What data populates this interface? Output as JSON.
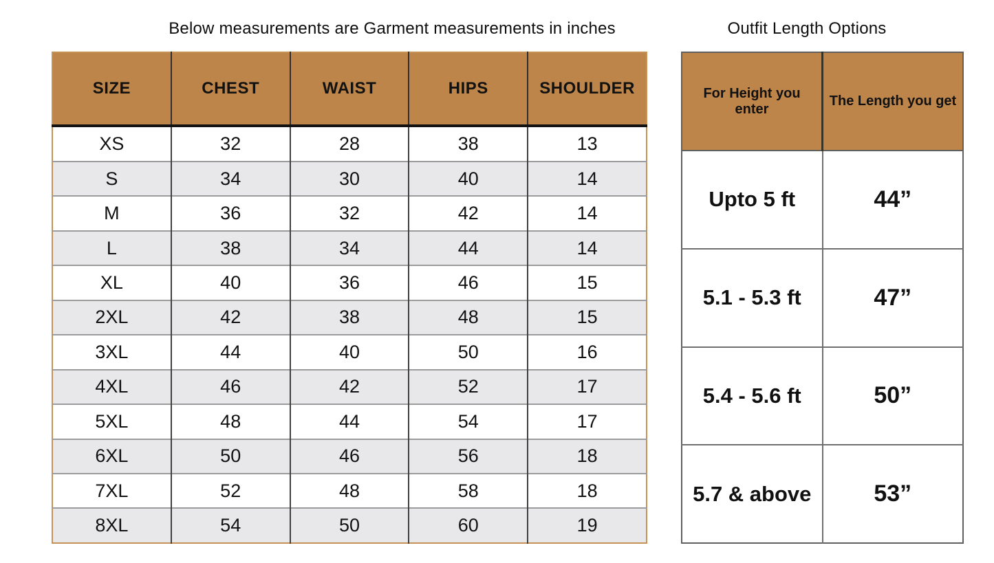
{
  "left_table": {
    "title": "Below measurements are Garment measurements in inches",
    "columns": [
      "SIZE",
      "CHEST",
      "WAIST",
      "HIPS",
      "SHOULDER"
    ],
    "rows": [
      [
        "XS",
        "32",
        "28",
        "38",
        "13"
      ],
      [
        "S",
        "34",
        "30",
        "40",
        "14"
      ],
      [
        "M",
        "36",
        "32",
        "42",
        "14"
      ],
      [
        "L",
        "38",
        "34",
        "44",
        "14"
      ],
      [
        "XL",
        "40",
        "36",
        "46",
        "15"
      ],
      [
        "2XL",
        "42",
        "38",
        "48",
        "15"
      ],
      [
        "3XL",
        "44",
        "40",
        "50",
        "16"
      ],
      [
        "4XL",
        "46",
        "42",
        "52",
        "17"
      ],
      [
        "5XL",
        "48",
        "44",
        "54",
        "17"
      ],
      [
        "6XL",
        "50",
        "46",
        "56",
        "18"
      ],
      [
        "7XL",
        "52",
        "48",
        "58",
        "18"
      ],
      [
        "8XL",
        "54",
        "50",
        "60",
        "19"
      ]
    ]
  },
  "right_table": {
    "title": "Outfit Length Options",
    "columns": [
      "For Height you enter",
      "The Length you get"
    ],
    "rows": [
      [
        "Upto 5 ft",
        "44”"
      ],
      [
        "5.1 - 5.3 ft",
        "47”"
      ],
      [
        "5.4 - 5.6 ft",
        "50”"
      ],
      [
        "5.7 & above",
        "53”"
      ]
    ]
  },
  "colors": {
    "header_fill": "#bd854a",
    "row_stripe": "#e8e8ea",
    "left_table_border": "#c79256",
    "right_table_border": "#5f5f5f",
    "header_underline": "#131313",
    "text": "#111111"
  }
}
